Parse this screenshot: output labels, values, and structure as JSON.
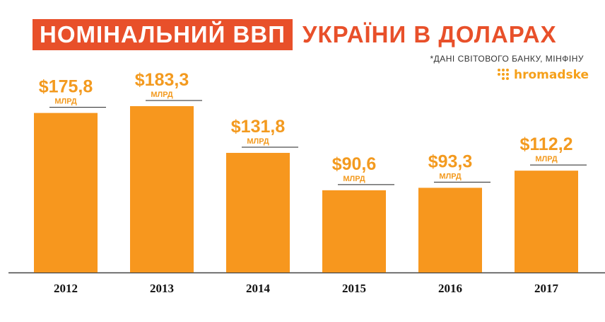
{
  "title": {
    "highlight": "НОМІНАЛЬНИЙ ВВП",
    "rest": "УКРАЇНИ В ДОЛАРАХ"
  },
  "source": "*ДАНІ СВІТОВОГО БАНКУ, МІНФІНУ",
  "logo": {
    "text": "hromadske",
    "icon": "dots-grid-icon"
  },
  "colors": {
    "accent": "#e8502a",
    "bar": "#f7971e",
    "value": "#f39a1f"
  },
  "chart_data": {
    "type": "bar",
    "categories": [
      "2012",
      "2013",
      "2014",
      "2015",
      "2016",
      "2017"
    ],
    "values": [
      175.8,
      183.3,
      131.8,
      90.6,
      93.3,
      112.2
    ],
    "value_labels": [
      "$175,8",
      "$183,3",
      "$131,8",
      "$90,6",
      "$93,3",
      "$112,2"
    ],
    "unit_label": "МЛРД",
    "ylim": [
      0,
      183.3
    ],
    "grid": false,
    "legend": "none"
  }
}
